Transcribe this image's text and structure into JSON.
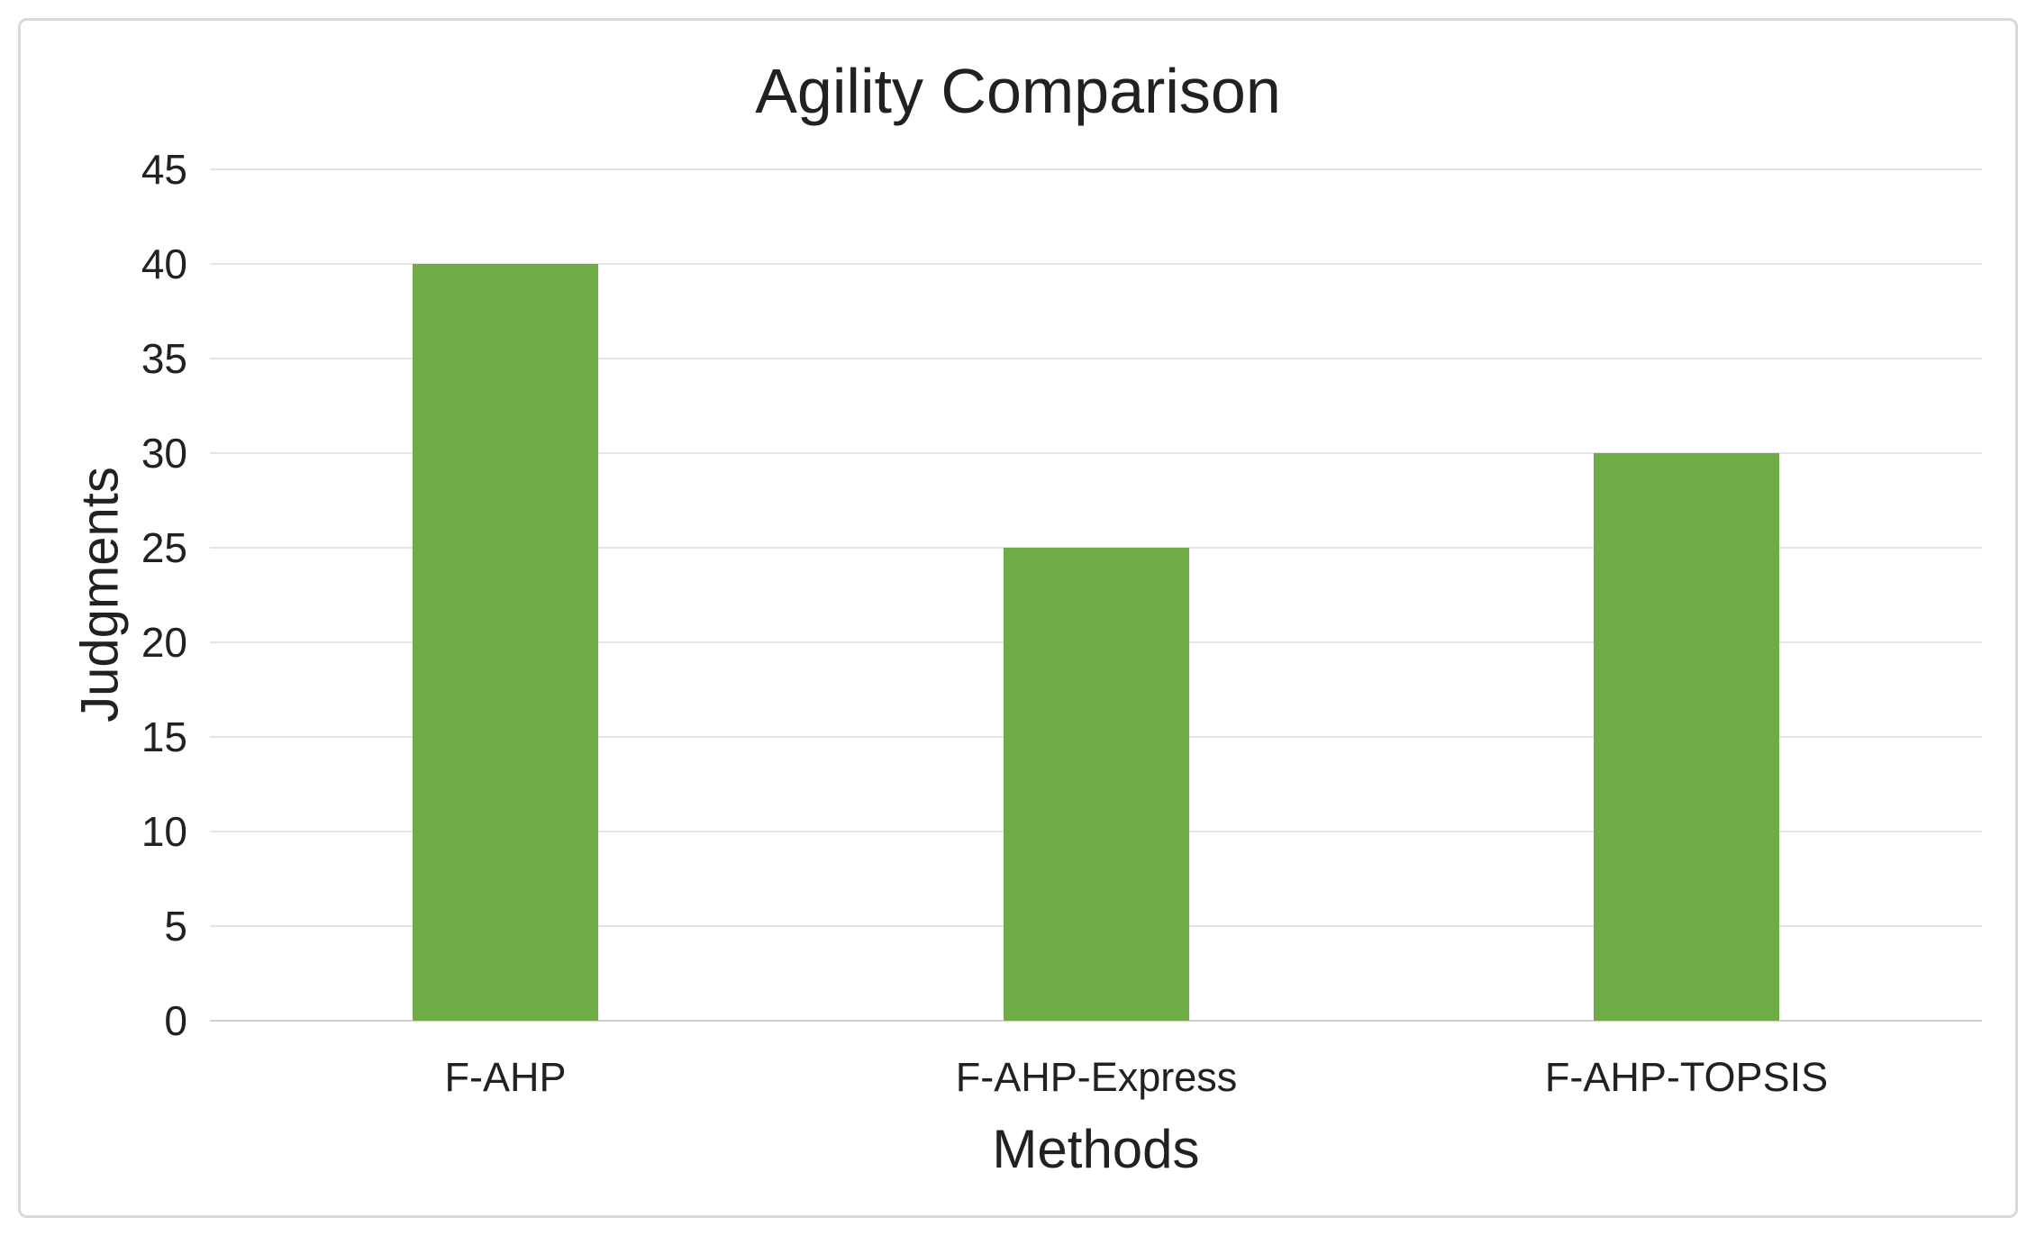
{
  "figure": {
    "background": "#ffffff",
    "border_color": "#d9d9d9"
  },
  "chart_data": {
    "type": "bar",
    "title": "Agility Comparison",
    "xlabel": "Methods",
    "ylabel": "Judgments",
    "categories": [
      "F-AHP",
      "F-AHP-Express",
      "F-AHP-TOPSIS"
    ],
    "values": [
      40,
      25,
      30
    ],
    "ylim": [
      0,
      45
    ],
    "yticks": [
      0,
      5,
      10,
      15,
      20,
      25,
      30,
      35,
      40,
      45
    ],
    "bar_color": "#6FAC47",
    "gridline_color": "#e4e4e4",
    "axis_line_color": "#d2d2d2",
    "text_color": "#212121",
    "grid": "horizontal-only",
    "legend": "none"
  }
}
